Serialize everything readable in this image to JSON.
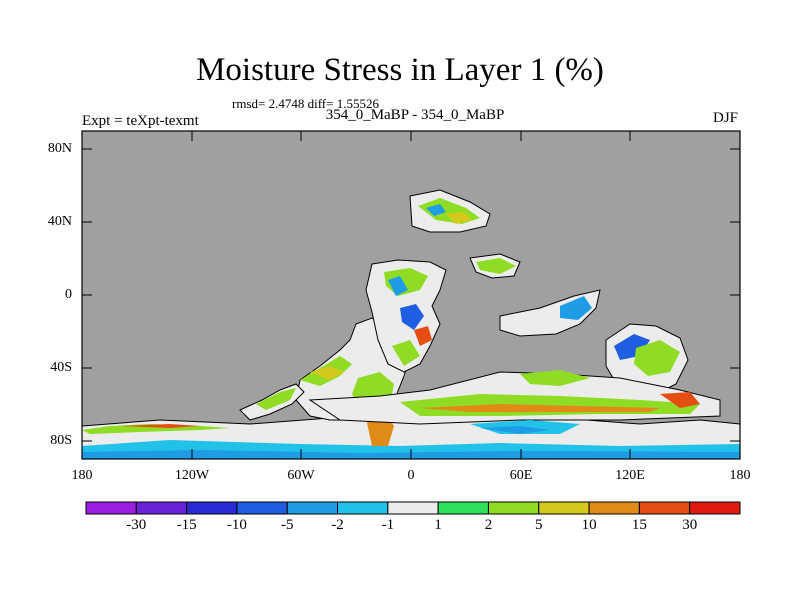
{
  "header": {
    "title": "Moisture Stress in Layer 1 (%)",
    "stats": "rmsd= 2.4748 diff= 1.55526",
    "experiment": "Expt = teXpt-texmt",
    "comparison": "354_0_MaBP - 354_0_MaBP",
    "season": "DJF"
  },
  "axes": {
    "y_ticks": [
      "80N",
      "40N",
      "0",
      "40S",
      "80S"
    ],
    "x_ticks": [
      "180",
      "120W",
      "60W",
      "0",
      "60E",
      "120E",
      "180"
    ]
  },
  "colorbar": {
    "colors": [
      "#9b1fe0",
      "#6a22d8",
      "#2a2ad6",
      "#1f5ee0",
      "#1f9ce6",
      "#22c2e8",
      "#ececec",
      "#2ee05a",
      "#8fdc24",
      "#d4c81c",
      "#e08a18",
      "#e44e12",
      "#e01a0e"
    ],
    "labels": [
      "-30",
      "-15",
      "-10",
      "-5",
      "-2",
      "-1",
      "1",
      "2",
      "5",
      "10",
      "15",
      "30"
    ]
  },
  "colors": {
    "ocean_mask": "#a0a0a0",
    "near_zero": "#ececec"
  }
}
